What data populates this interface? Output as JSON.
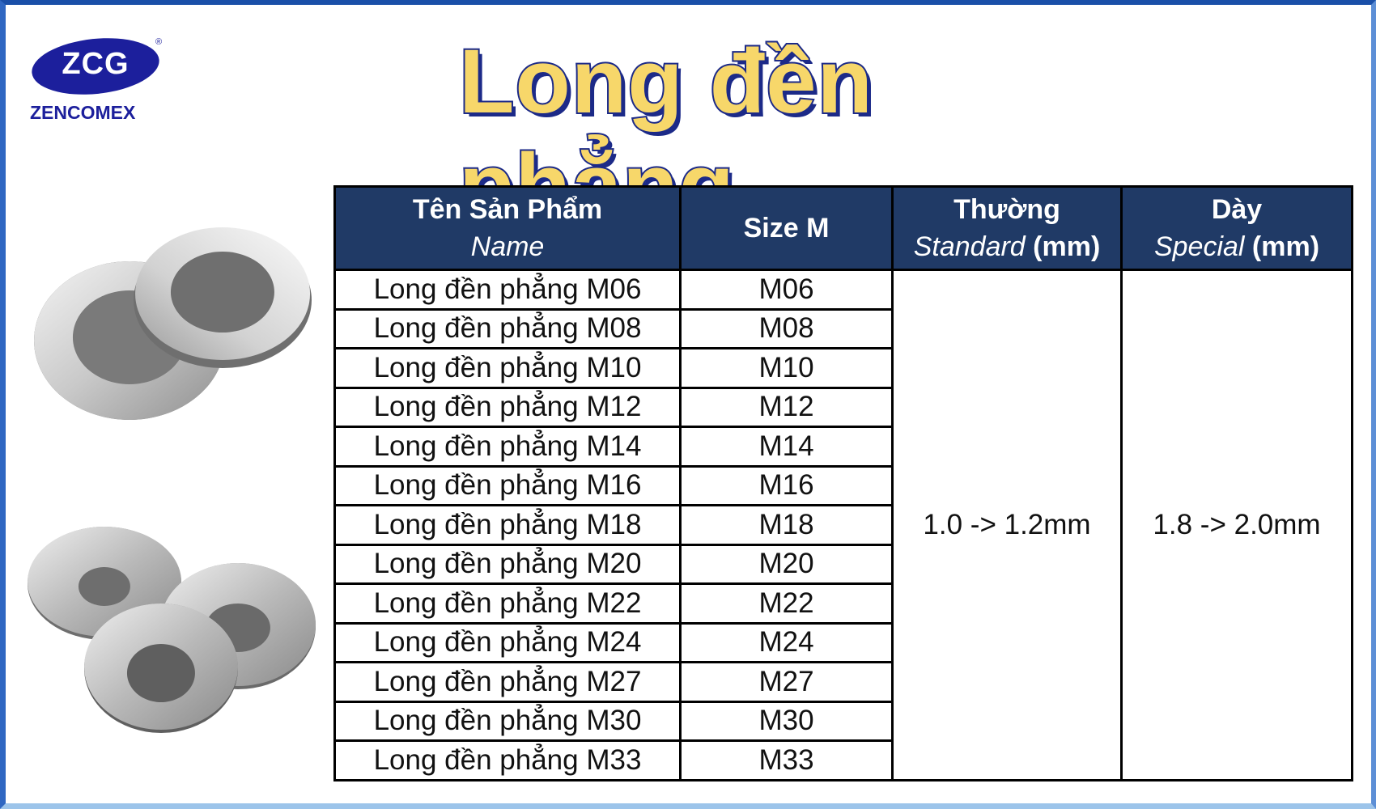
{
  "logo": {
    "brand": "ZCG",
    "registered": "®",
    "company": "ZENCOMEX"
  },
  "title": "Long đền phẳng",
  "table": {
    "headers": {
      "name": {
        "main": "Tên Sản Phẩm",
        "sub": "Name"
      },
      "size": {
        "main": "Size M"
      },
      "standard": {
        "main": "Thường",
        "sub": "Standard",
        "unit": "(mm)"
      },
      "special": {
        "main": "Dày",
        "sub": "Special",
        "unit": "(mm)"
      }
    },
    "rows": [
      {
        "name": "Long đền phẳng M06",
        "size": "M06"
      },
      {
        "name": "Long đền phẳng M08",
        "size": "M08"
      },
      {
        "name": "Long đền phẳng M10",
        "size": "M10"
      },
      {
        "name": "Long đền phẳng M12",
        "size": "M12"
      },
      {
        "name": "Long đền phẳng M14",
        "size": "M14"
      },
      {
        "name": "Long đền phẳng M16",
        "size": "M16"
      },
      {
        "name": "Long đền phẳng M18",
        "size": "M18"
      },
      {
        "name": "Long đền phẳng M20",
        "size": "M20"
      },
      {
        "name": "Long đền phẳng M22",
        "size": "M22"
      },
      {
        "name": "Long đền phẳng M24",
        "size": "M24"
      },
      {
        "name": "Long đền phẳng M27",
        "size": "M27"
      },
      {
        "name": "Long đền phẳng M30",
        "size": "M30"
      },
      {
        "name": "Long đền phẳng M33",
        "size": "M33"
      }
    ],
    "standard_value": "1.0 -> 1.2mm",
    "special_value": "1.8 -> 2.0mm"
  },
  "colors": {
    "header_bg": "#203a66",
    "title_fill": "#f7d76a",
    "title_outline": "#1c2a88",
    "logo_blue": "#1c1f9c"
  }
}
